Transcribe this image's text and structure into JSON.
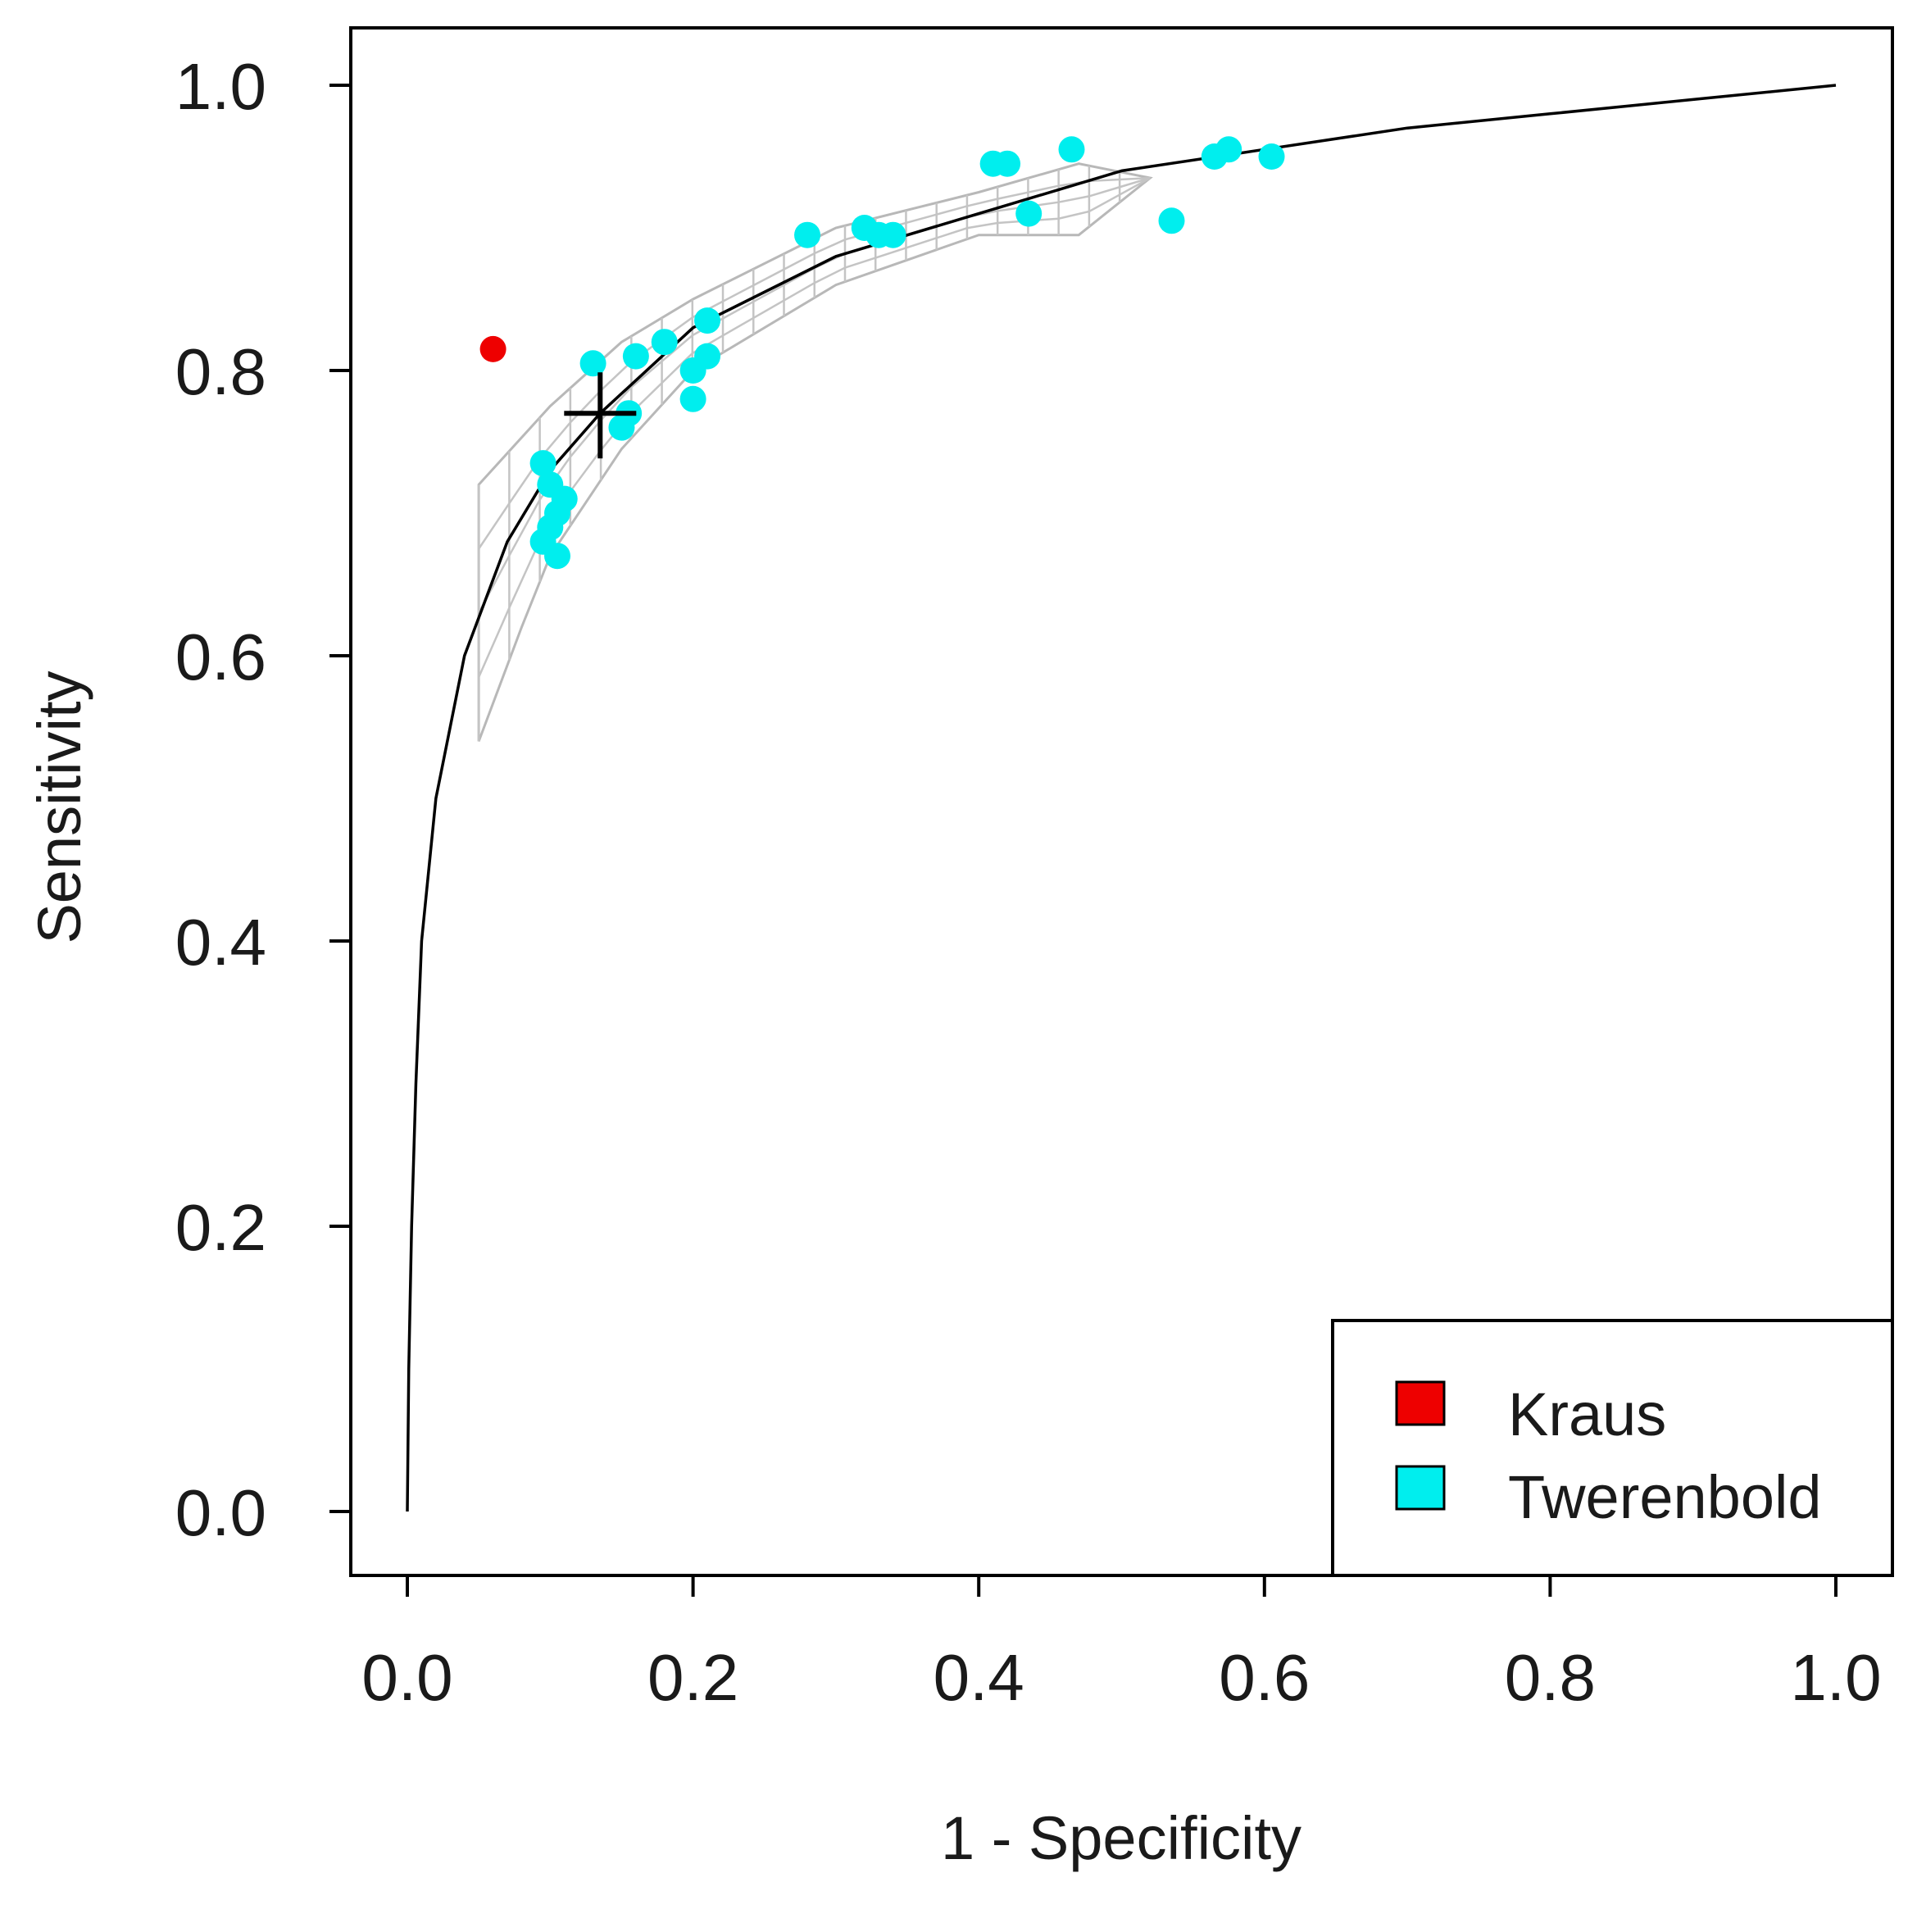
{
  "chart_data": {
    "type": "scatter",
    "title": "",
    "xlabel": "1 - Specificity",
    "ylabel": "Sensitivity",
    "xlim": [
      0.0,
      1.0
    ],
    "ylim": [
      0.0,
      1.0
    ],
    "x_ticks": [
      "0.0",
      "0.2",
      "0.4",
      "0.6",
      "0.8",
      "1.0"
    ],
    "y_ticks": [
      "0.0",
      "0.2",
      "0.4",
      "0.6",
      "0.8",
      "1.0"
    ],
    "legend": {
      "position": "bottom-right",
      "entries": [
        {
          "label": "Kraus",
          "color": "#ee0000"
        },
        {
          "label": "Twerenbold",
          "color": "#00eeee"
        }
      ]
    },
    "series": [
      {
        "name": "Kraus",
        "color": "#ee0000",
        "points": [
          [
            0.06,
            0.815
          ]
        ]
      },
      {
        "name": "Twerenbold",
        "color": "#00eeee",
        "points": [
          [
            0.095,
            0.735
          ],
          [
            0.1,
            0.72
          ],
          [
            0.105,
            0.7
          ],
          [
            0.11,
            0.71
          ],
          [
            0.1,
            0.69
          ],
          [
            0.095,
            0.68
          ],
          [
            0.105,
            0.67
          ],
          [
            0.13,
            0.805
          ],
          [
            0.155,
            0.77
          ],
          [
            0.15,
            0.76
          ],
          [
            0.16,
            0.81
          ],
          [
            0.18,
            0.82
          ],
          [
            0.2,
            0.78
          ],
          [
            0.2,
            0.8
          ],
          [
            0.21,
            0.81
          ],
          [
            0.21,
            0.835
          ],
          [
            0.28,
            0.895
          ],
          [
            0.32,
            0.9
          ],
          [
            0.33,
            0.895
          ],
          [
            0.34,
            0.895
          ],
          [
            0.41,
            0.945
          ],
          [
            0.42,
            0.945
          ],
          [
            0.435,
            0.91
          ],
          [
            0.465,
            0.955
          ],
          [
            0.535,
            0.905
          ],
          [
            0.565,
            0.95
          ],
          [
            0.575,
            0.955
          ],
          [
            0.605,
            0.95
          ]
        ]
      }
    ],
    "summary_point": {
      "label": "summary estimate",
      "x": 0.135,
      "y": 0.77
    },
    "sroc_curve": {
      "points": [
        [
          0.0,
          0.0
        ],
        [
          0.001,
          0.1
        ],
        [
          0.003,
          0.2
        ],
        [
          0.006,
          0.3
        ],
        [
          0.01,
          0.4
        ],
        [
          0.02,
          0.5
        ],
        [
          0.04,
          0.6
        ],
        [
          0.07,
          0.68
        ],
        [
          0.1,
          0.73
        ],
        [
          0.135,
          0.77
        ],
        [
          0.2,
          0.83
        ],
        [
          0.3,
          0.88
        ],
        [
          0.4,
          0.91
        ],
        [
          0.5,
          0.94
        ],
        [
          0.6,
          0.955
        ],
        [
          0.7,
          0.97
        ],
        [
          0.8,
          0.98
        ],
        [
          0.9,
          0.99
        ],
        [
          1.0,
          1.0
        ]
      ]
    },
    "confidence_region": {
      "x_range": [
        0.05,
        0.52
      ],
      "upper": [
        [
          0.05,
          0.72
        ],
        [
          0.1,
          0.775
        ],
        [
          0.15,
          0.82
        ],
        [
          0.2,
          0.85
        ],
        [
          0.3,
          0.9
        ],
        [
          0.4,
          0.925
        ],
        [
          0.47,
          0.945
        ],
        [
          0.52,
          0.935
        ]
      ],
      "lower": [
        [
          0.05,
          0.54
        ],
        [
          0.08,
          0.62
        ],
        [
          0.1,
          0.67
        ],
        [
          0.15,
          0.745
        ],
        [
          0.2,
          0.8
        ],
        [
          0.3,
          0.86
        ],
        [
          0.4,
          0.895
        ],
        [
          0.47,
          0.895
        ],
        [
          0.52,
          0.935
        ]
      ]
    }
  }
}
